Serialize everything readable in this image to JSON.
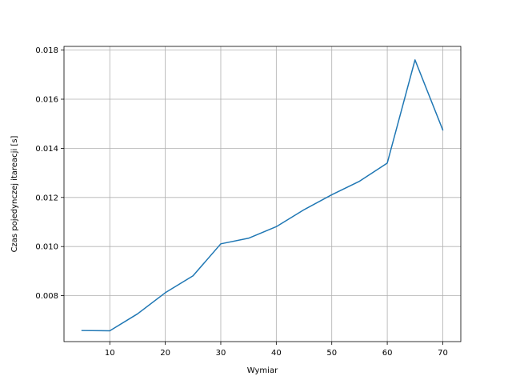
{
  "chart_data": {
    "type": "line",
    "title": "",
    "xlabel": "Wymiar",
    "ylabel": "Czas pojedynczej itareacji [s]",
    "xlim": [
      1.75,
      73.25
    ],
    "ylim": [
      0.00613,
      0.01815
    ],
    "xticks": [
      10,
      20,
      30,
      40,
      50,
      60,
      70
    ],
    "xtick_labels": [
      "10",
      "20",
      "30",
      "40",
      "50",
      "60",
      "70"
    ],
    "yticks": [
      0.008,
      0.01,
      0.012,
      0.014,
      0.016,
      0.018
    ],
    "ytick_labels": [
      "0.008",
      "0.010",
      "0.012",
      "0.014",
      "0.016",
      "0.018"
    ],
    "grid": true,
    "legend": false,
    "series": [
      {
        "color": "#1f77b4",
        "x": [
          5,
          10,
          15,
          20,
          25,
          30,
          35,
          40,
          45,
          50,
          55,
          60,
          65,
          70
        ],
        "y": [
          0.00658,
          0.00657,
          0.00726,
          0.00812,
          0.00881,
          0.01011,
          0.01034,
          0.01081,
          0.0115,
          0.01211,
          0.01266,
          0.0134,
          0.0176,
          0.01475
        ]
      }
    ]
  }
}
